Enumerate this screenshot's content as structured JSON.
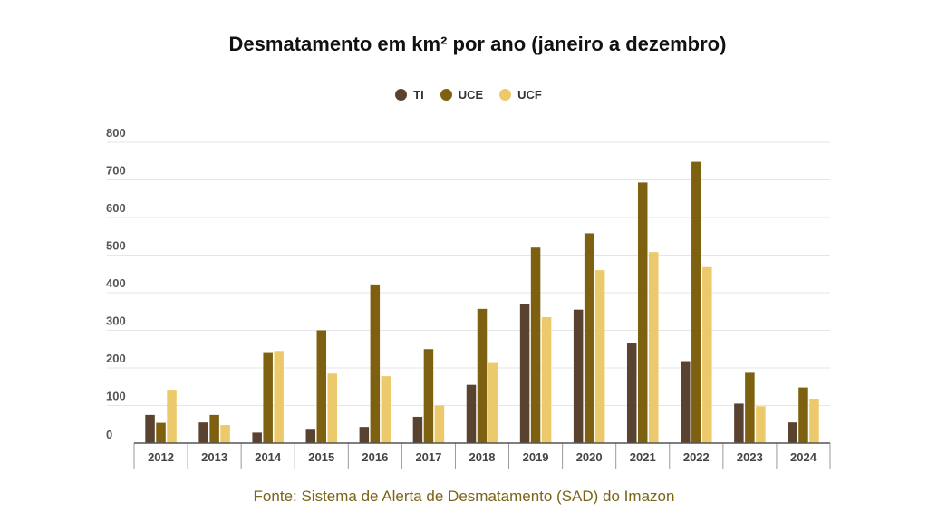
{
  "title": "Desmatamento em km² por ano (janeiro a dezembro)",
  "source": "Fonte: Sistema de Alerta de Desmatamento (SAD) do Imazon",
  "colors": {
    "TI": "#5a4230",
    "UCE": "#7d6110",
    "UCF": "#ecc96a"
  },
  "chart_data": {
    "type": "bar",
    "categories": [
      "2012",
      "2013",
      "2014",
      "2015",
      "2016",
      "2017",
      "2018",
      "2019",
      "2020",
      "2021",
      "2022",
      "2023",
      "2024"
    ],
    "series": [
      {
        "name": "TI",
        "values": [
          75,
          55,
          28,
          38,
          43,
          70,
          155,
          370,
          355,
          265,
          218,
          105,
          55
        ]
      },
      {
        "name": "UCE",
        "values": [
          54,
          75,
          242,
          300,
          422,
          250,
          357,
          520,
          558,
          693,
          748,
          187,
          148
        ]
      },
      {
        "name": "UCF",
        "values": [
          142,
          48,
          245,
          185,
          178,
          100,
          213,
          335,
          460,
          508,
          468,
          98,
          118
        ]
      }
    ],
    "yticks": [
      0,
      100,
      200,
      300,
      400,
      500,
      600,
      700,
      800
    ],
    "ylim": [
      0,
      800
    ],
    "grid": true,
    "legend_position": "top-center"
  }
}
